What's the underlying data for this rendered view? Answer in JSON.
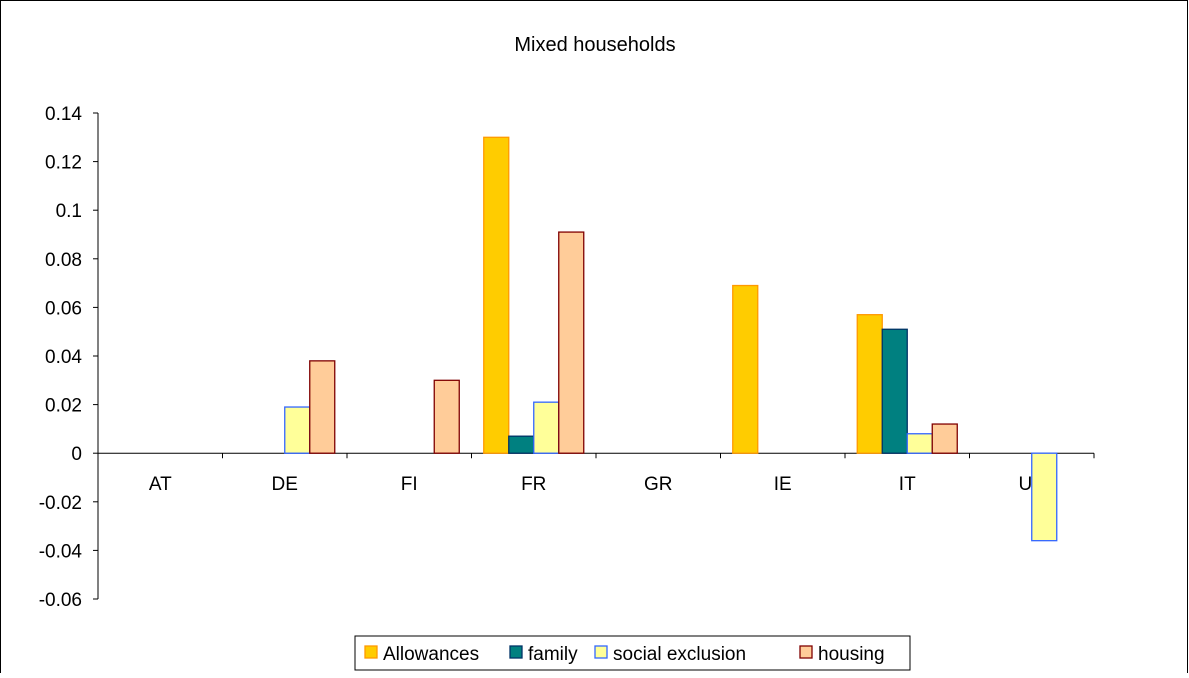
{
  "chart_data": {
    "type": "bar",
    "title": "Mixed households",
    "xlabel": "",
    "ylabel": "",
    "categories": [
      "AT",
      "DE",
      "FI",
      "FR",
      "GR",
      "IE",
      "IT",
      "UK"
    ],
    "ylim": [
      -0.06,
      0.14
    ],
    "yticks": [
      "-0.06",
      "-0.04",
      "-0.02",
      "0",
      "0.02",
      "0.04",
      "0.06",
      "0.08",
      "0.1",
      "0.12",
      "0.14"
    ],
    "grid": false,
    "legend_position": "bottom",
    "series": [
      {
        "name": "Allowances",
        "color": "#FFCC00",
        "stroke": "#FF9900",
        "values": [
          0,
          0,
          0,
          0.13,
          0,
          0.069,
          0.057,
          0
        ]
      },
      {
        "name": "family",
        "color": "#008080",
        "stroke": "#003366",
        "values": [
          0,
          0,
          0,
          0.007,
          0,
          0,
          0.051,
          0
        ]
      },
      {
        "name": "social exclusion",
        "color": "#FFFF99",
        "stroke": "#3366FF",
        "values": [
          0,
          0.019,
          0,
          0.021,
          0,
          0,
          0.008,
          -0.036
        ]
      },
      {
        "name": "housing",
        "color": "#FFCC99",
        "stroke": "#800000",
        "values": [
          0,
          0.038,
          0.03,
          0.091,
          0,
          0,
          0.012,
          0
        ]
      }
    ]
  }
}
